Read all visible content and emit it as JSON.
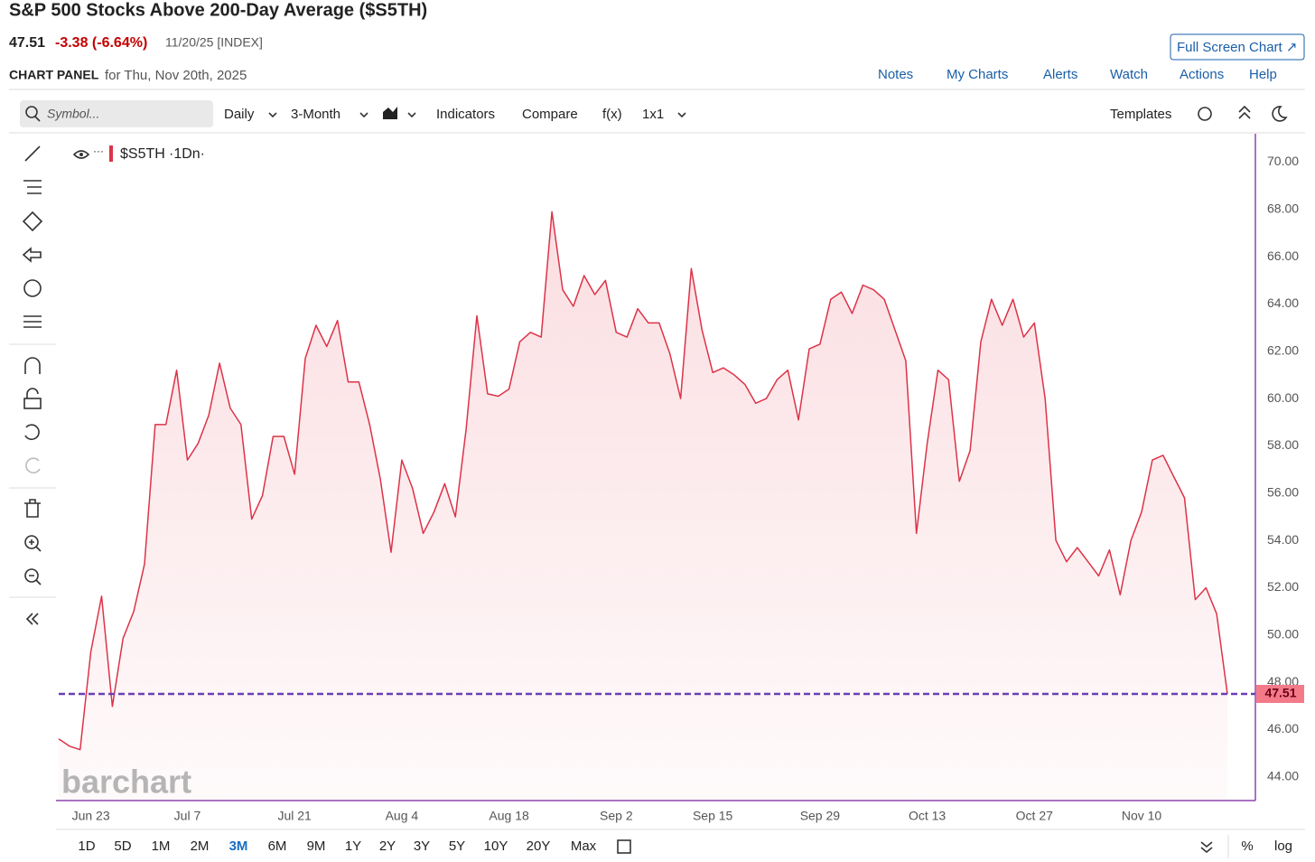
{
  "header": {
    "title": "S&P 500 Stocks Above 200-Day Average ($S5TH)",
    "last": "47.51",
    "change": "-3.38 (-6.64%)",
    "date": "11/20/25 [INDEX]",
    "panel": "CHART PANEL",
    "panel_date": "for Thu, Nov 20th, 2025",
    "full_screen": "Full Screen Chart ↗"
  },
  "nav": [
    "Notes",
    "My Charts",
    "Alerts",
    "Watch",
    "Actions",
    "Help"
  ],
  "toolbar": {
    "symbol_placeholder": "Symbol...",
    "items": [
      "Daily",
      "3-Month",
      "Indicators",
      "Compare",
      "f(x)",
      "1x1"
    ],
    "templates": "Templates"
  },
  "watermark": "barchart",
  "series_info": "·1Dn·",
  "range_buttons": [
    "1D",
    "5D",
    "1M",
    "2M",
    "3M",
    "6M",
    "9M",
    "1Y",
    "2Y",
    "3Y",
    "5Y",
    "10Y",
    "20Y",
    "Max"
  ],
  "selected_range": "3M",
  "scale_buttons": [
    "%",
    "log"
  ],
  "chart_data": {
    "type": "line",
    "categories": [
      null,
      null,
      null,
      "Jun 23",
      null,
      null,
      null,
      null,
      null,
      null,
      null,
      null,
      "Jul 7",
      null,
      null,
      null,
      null,
      null,
      null,
      null,
      null,
      null,
      "Jul 21",
      null,
      null,
      null,
      null,
      null,
      null,
      null,
      null,
      null,
      "Aug 4",
      null,
      null,
      null,
      null,
      null,
      null,
      null,
      null,
      null,
      "Aug 18",
      null,
      null,
      null,
      null,
      null,
      null,
      null,
      null,
      null,
      "Sep 2",
      null,
      null,
      null,
      null,
      null,
      null,
      null,
      null,
      "Sep 15",
      null,
      null,
      null,
      null,
      null,
      null,
      null,
      null,
      null,
      "Sep 29",
      null,
      null,
      null,
      null,
      null,
      null,
      null,
      null,
      null,
      "Oct 13",
      null,
      null,
      null,
      null,
      null,
      null,
      null,
      null,
      null,
      "Oct 27",
      null,
      null,
      null,
      null,
      null,
      null,
      null,
      null,
      null,
      "Nov 10",
      null,
      null,
      null,
      null,
      null,
      null,
      null,
      null
    ],
    "series": [
      {
        "name": "$S5TH",
        "color": "#dc3348",
        "values": [
          45.61,
          45.3,
          45.15,
          49.3,
          51.64,
          46.98,
          49.85,
          51.0,
          53.0,
          58.9,
          58.9,
          61.2,
          57.4,
          58.1,
          59.3,
          61.5,
          59.6,
          58.9,
          54.9,
          55.9,
          58.4,
          58.4,
          56.8,
          61.7,
          63.1,
          62.2,
          63.3,
          60.7,
          60.7,
          58.9,
          56.6,
          53.5,
          57.4,
          56.2,
          54.3,
          55.2,
          56.4,
          55.0,
          58.7,
          63.5,
          60.2,
          60.1,
          60.4,
          62.4,
          62.8,
          62.6,
          67.9,
          64.6,
          63.9,
          65.2,
          64.4,
          65.0,
          62.8,
          62.6,
          63.8,
          63.2,
          63.2,
          61.9,
          60.0,
          65.5,
          62.9,
          61.1,
          61.3,
          61.0,
          60.6,
          59.8,
          60.0,
          60.8,
          61.2,
          59.1,
          62.1,
          62.3,
          64.2,
          64.5,
          63.6,
          64.8,
          64.6,
          64.2,
          62.9,
          61.6,
          54.3,
          58.1,
          61.2,
          60.8,
          56.5,
          57.8,
          62.4,
          64.2,
          63.1,
          64.2,
          62.6,
          63.2,
          60.0,
          54.0,
          53.1,
          53.7,
          53.1,
          52.5,
          53.6,
          51.7,
          54.0,
          55.2,
          57.4,
          57.6,
          56.7,
          55.8,
          51.5,
          52.0,
          50.9,
          47.51
        ]
      }
    ],
    "ylim": [
      43.0,
      71.2
    ],
    "yticks": [
      {
        "value": 44,
        "label": "44.00"
      },
      {
        "value": 46,
        "label": "46.00"
      },
      {
        "value": 48,
        "label": "48.00"
      },
      {
        "value": 50,
        "label": "50.00"
      },
      {
        "value": 52,
        "label": "52.00"
      },
      {
        "value": 54,
        "label": "54.00"
      },
      {
        "value": 56,
        "label": "56.00"
      },
      {
        "value": 58,
        "label": "58.00"
      },
      {
        "value": 60,
        "label": "60.00"
      },
      {
        "value": 62,
        "label": "62.00"
      },
      {
        "value": 64,
        "label": "64.00"
      },
      {
        "value": 66,
        "label": "66.00"
      },
      {
        "value": 68,
        "label": "68.00"
      },
      {
        "value": 70,
        "label": "70.00"
      }
    ],
    "grid": false,
    "last_value_line": true,
    "last_value_color": "#6a3fb5"
  }
}
